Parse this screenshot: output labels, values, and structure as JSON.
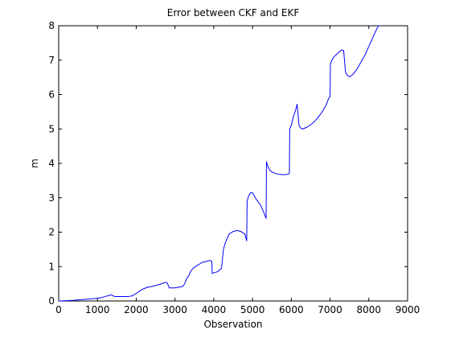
{
  "chart_data": {
    "type": "line",
    "title": "Error between CKF and EKF",
    "xlabel": "Observation",
    "ylabel": "m",
    "xlim": [
      0,
      9000
    ],
    "ylim": [
      0,
      8
    ],
    "xticks": [
      0,
      1000,
      2000,
      3000,
      4000,
      5000,
      6000,
      7000,
      8000,
      9000
    ],
    "yticks": [
      0,
      1,
      2,
      3,
      4,
      5,
      6,
      7,
      8
    ],
    "grid": false,
    "legend": "none",
    "series": [
      {
        "color": "#0000ff",
        "x": [
          0,
          200,
          400,
          600,
          800,
          1000,
          1100,
          1200,
          1300,
          1350,
          1400,
          1450,
          1800,
          1900,
          2000,
          2100,
          2200,
          2300,
          2400,
          2500,
          2600,
          2700,
          2750,
          2800,
          2850,
          2900,
          3000,
          3100,
          3200,
          3250,
          3300,
          3350,
          3400,
          3450,
          3500,
          3600,
          3700,
          3800,
          3900,
          3950,
          3960,
          4000,
          4100,
          4200,
          4250,
          4300,
          4400,
          4500,
          4600,
          4700,
          4800,
          4850,
          4860,
          4900,
          4950,
          5000,
          5050,
          5100,
          5200,
          5300,
          5350,
          5360,
          5400,
          5450,
          5500,
          5600,
          5700,
          5800,
          5900,
          5950,
          5960,
          6000,
          6050,
          6100,
          6150,
          6200,
          6250,
          6300,
          6400,
          6500,
          6600,
          6700,
          6800,
          6900,
          6950,
          7000,
          7010,
          7050,
          7100,
          7200,
          7300,
          7350,
          7400,
          7450,
          7500,
          7550,
          7600,
          7700,
          7800,
          7900,
          8000,
          8100,
          8200,
          8250,
          8300
        ],
        "y": [
          0.0,
          0.01,
          0.02,
          0.04,
          0.06,
          0.08,
          0.1,
          0.13,
          0.16,
          0.18,
          0.15,
          0.13,
          0.13,
          0.15,
          0.22,
          0.3,
          0.36,
          0.4,
          0.42,
          0.45,
          0.48,
          0.52,
          0.54,
          0.53,
          0.38,
          0.38,
          0.38,
          0.4,
          0.42,
          0.5,
          0.65,
          0.72,
          0.85,
          0.93,
          0.98,
          1.05,
          1.12,
          1.15,
          1.18,
          1.15,
          0.8,
          0.82,
          0.85,
          0.95,
          1.5,
          1.7,
          1.95,
          2.02,
          2.05,
          2.02,
          1.95,
          1.75,
          2.9,
          3.05,
          3.15,
          3.15,
          3.05,
          2.95,
          2.8,
          2.55,
          2.4,
          4.05,
          3.9,
          3.8,
          3.75,
          3.7,
          3.68,
          3.67,
          3.68,
          3.7,
          5.0,
          5.1,
          5.35,
          5.5,
          5.72,
          5.1,
          5.02,
          5.0,
          5.05,
          5.12,
          5.22,
          5.35,
          5.5,
          5.7,
          5.85,
          5.95,
          6.9,
          7.0,
          7.1,
          7.2,
          7.3,
          7.28,
          6.65,
          6.55,
          6.52,
          6.55,
          6.6,
          6.75,
          6.95,
          7.15,
          7.4,
          7.65,
          7.9,
          8.0,
          8.0
        ]
      }
    ]
  }
}
